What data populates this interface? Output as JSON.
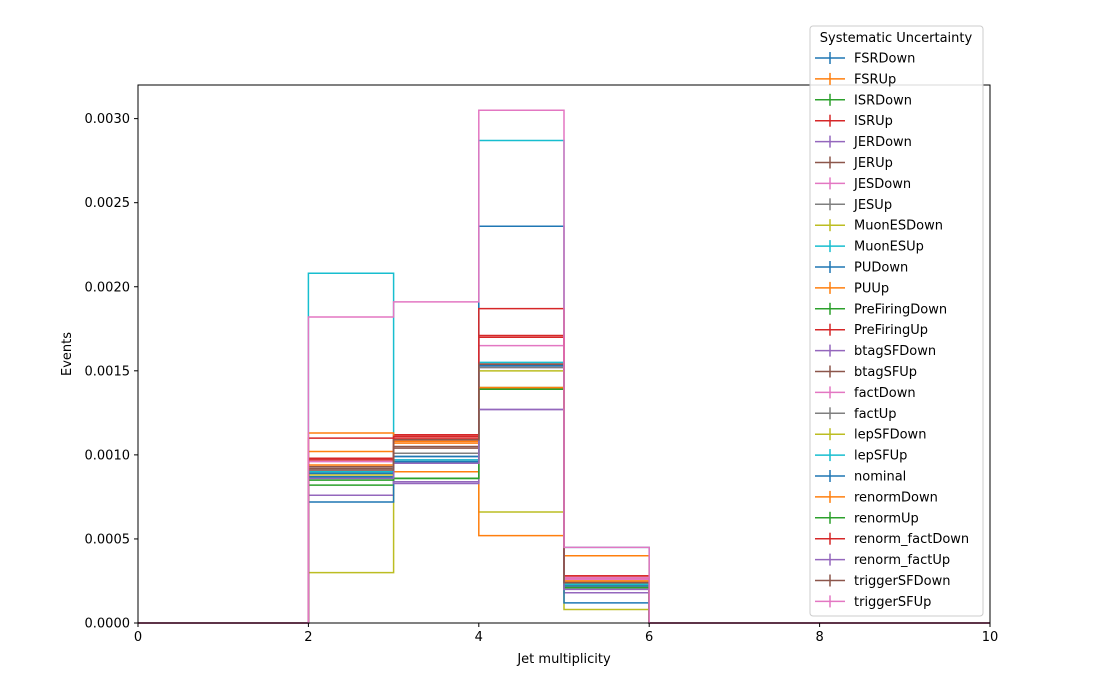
{
  "chart_data": {
    "type": "step",
    "xlabel": "Jet multiplicity",
    "ylabel": "Events",
    "xlim": [
      0,
      10
    ],
    "ylim": [
      0,
      0.0032
    ],
    "xticks": [
      "0",
      "2",
      "4",
      "6",
      "8",
      "10"
    ],
    "yticks": [
      "0.0000",
      "0.0005",
      "0.0010",
      "0.0015",
      "0.0020",
      "0.0025",
      "0.0030"
    ],
    "legend_title": "Systematic Uncertainty",
    "legend_position": "upper-right",
    "grid": false,
    "bin_edges": [
      0,
      1,
      2,
      3,
      4,
      5,
      6,
      7,
      8,
      9,
      10
    ],
    "series": [
      {
        "name": "FSRDown",
        "color": "#1f77b4",
        "values": [
          0,
          0,
          0.00087,
          0.00099,
          0.00153,
          0.00021,
          0,
          0,
          0,
          0
        ]
      },
      {
        "name": "FSRUp",
        "color": "#ff7f0e",
        "values": [
          0,
          0,
          0.00102,
          0.0009,
          0.0014,
          0.0004,
          0,
          0,
          0,
          0
        ]
      },
      {
        "name": "ISRDown",
        "color": "#2ca02c",
        "values": [
          0,
          0,
          0.00082,
          0.00086,
          0.00139,
          0.00022,
          0,
          0,
          0,
          0
        ]
      },
      {
        "name": "ISRUp",
        "color": "#d62728",
        "values": [
          0,
          0,
          0.00098,
          0.00112,
          0.00171,
          0.00028,
          0,
          0,
          0,
          0
        ]
      },
      {
        "name": "JERDown",
        "color": "#9467bd",
        "values": [
          0,
          0,
          0.00076,
          0.00084,
          0.00127,
          0.00018,
          0,
          0,
          0,
          0
        ]
      },
      {
        "name": "JERUp",
        "color": "#8c564b",
        "values": [
          0,
          0,
          0.00093,
          0.00104,
          0.00154,
          0.00024,
          0,
          0,
          0,
          0
        ]
      },
      {
        "name": "JESDown",
        "color": "#e377c2",
        "values": [
          0,
          0,
          0.00096,
          0.00108,
          0.00165,
          0.00026,
          0,
          0,
          0,
          0
        ]
      },
      {
        "name": "JESUp",
        "color": "#7f7f7f",
        "values": [
          0,
          0,
          0.0009,
          0.00101,
          0.00153,
          0.00022,
          0,
          0,
          0,
          0
        ]
      },
      {
        "name": "MuonESDown",
        "color": "#bcbd22",
        "values": [
          0,
          0,
          0.0003,
          0.00095,
          0.00066,
          8e-05,
          0,
          0,
          0,
          0
        ]
      },
      {
        "name": "MuonESUp",
        "color": "#17becf",
        "values": [
          0,
          0,
          0.00208,
          0.00096,
          0.00287,
          0.00045,
          0,
          0,
          0,
          0
        ]
      },
      {
        "name": "PUDown",
        "color": "#1f77b4",
        "values": [
          0,
          0,
          0.00072,
          0.00099,
          0.00236,
          0.00012,
          0,
          0,
          0,
          0
        ]
      },
      {
        "name": "PUUp",
        "color": "#ff7f0e",
        "values": [
          0,
          0,
          0.00113,
          0.00108,
          0.00052,
          0.00025,
          0,
          0,
          0,
          0
        ]
      },
      {
        "name": "PreFiringDown",
        "color": "#2ca02c",
        "values": [
          0,
          0,
          0.00086,
          0.00086,
          0.0014,
          0.00023,
          0,
          0,
          0,
          0
        ]
      },
      {
        "name": "PreFiringUp",
        "color": "#d62728",
        "values": [
          0,
          0,
          0.0011,
          0.00111,
          0.00187,
          0.00027,
          0,
          0,
          0,
          0
        ]
      },
      {
        "name": "btagSFDown",
        "color": "#9467bd",
        "values": [
          0,
          0,
          0.00089,
          0.00083,
          0.00152,
          0.00021,
          0,
          0,
          0,
          0
        ]
      },
      {
        "name": "btagSFUp",
        "color": "#8c564b",
        "values": [
          0,
          0,
          0.00092,
          0.00105,
          0.00154,
          0.00024,
          0,
          0,
          0,
          0
        ]
      },
      {
        "name": "factDown",
        "color": "#e377c2",
        "values": [
          0,
          0,
          0.00097,
          0.00097,
          0.0017,
          0.00027,
          0,
          0,
          0,
          0
        ]
      },
      {
        "name": "factUp",
        "color": "#7f7f7f",
        "values": [
          0,
          0,
          0.00091,
          0.00096,
          0.00152,
          0.00022,
          0,
          0,
          0,
          0
        ]
      },
      {
        "name": "lepSFDown",
        "color": "#bcbd22",
        "values": [
          0,
          0,
          0.00088,
          0.00095,
          0.0015,
          0.00022,
          0,
          0,
          0,
          0
        ]
      },
      {
        "name": "lepSFUp",
        "color": "#17becf",
        "values": [
          0,
          0,
          0.0009,
          0.00097,
          0.00155,
          0.00023,
          0,
          0,
          0,
          0
        ]
      },
      {
        "name": "nominal",
        "color": "#1f77b4",
        "values": [
          0,
          0,
          0.00089,
          0.00096,
          0.00153,
          0.00022,
          0,
          0,
          0,
          0
        ]
      },
      {
        "name": "renormDown",
        "color": "#ff7f0e",
        "values": [
          0,
          0,
          0.00094,
          0.00107,
          0.0014,
          0.00025,
          0,
          0,
          0,
          0
        ]
      },
      {
        "name": "renormUp",
        "color": "#2ca02c",
        "values": [
          0,
          0,
          0.00085,
          0.00086,
          0.00139,
          0.00021,
          0,
          0,
          0,
          0
        ]
      },
      {
        "name": "renorm_factDown",
        "color": "#d62728",
        "values": [
          0,
          0,
          0.00097,
          0.0011,
          0.0017,
          0.00028,
          0,
          0,
          0,
          0
        ]
      },
      {
        "name": "renorm_factUp",
        "color": "#9467bd",
        "values": [
          0,
          0,
          0.00086,
          0.00095,
          0.00127,
          0.0002,
          0,
          0,
          0,
          0
        ]
      },
      {
        "name": "triggerSFDown",
        "color": "#8c564b",
        "values": [
          0,
          0,
          0.00091,
          0.00109,
          0.00154,
          0.00024,
          0,
          0,
          0,
          0
        ]
      },
      {
        "name": "triggerSFUp",
        "color": "#e377c2",
        "values": [
          0,
          0,
          0.00182,
          0.00191,
          0.00305,
          0.00045,
          0,
          0,
          0,
          0
        ]
      }
    ]
  }
}
